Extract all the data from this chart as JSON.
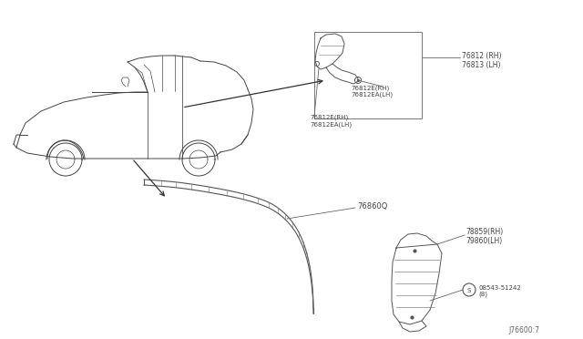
{
  "bg_color": "#ffffff",
  "fig_width": 6.4,
  "fig_height": 3.72,
  "dpi": 100,
  "part_labels": {
    "76812_RH_76813_LH": "76812 (RH)\n76813 (LH)",
    "76812E_RH_76812EA_LH_inner": "76812E(RH)\n76812EA(LH)",
    "76812E_RH_76812EA_LH_outer": "76812E(RH)\n76812EA(LH)",
    "76860Q": "76860Q",
    "78859_RH_79860_LH": "78859(RH)\n79860(LH)",
    "08543_51242": "08543-51242\n(8)"
  },
  "diagram_code": "J76600:7",
  "car_color": "#444444",
  "part_color": "#555555",
  "label_color": "#444444",
  "line_color": "#666666"
}
